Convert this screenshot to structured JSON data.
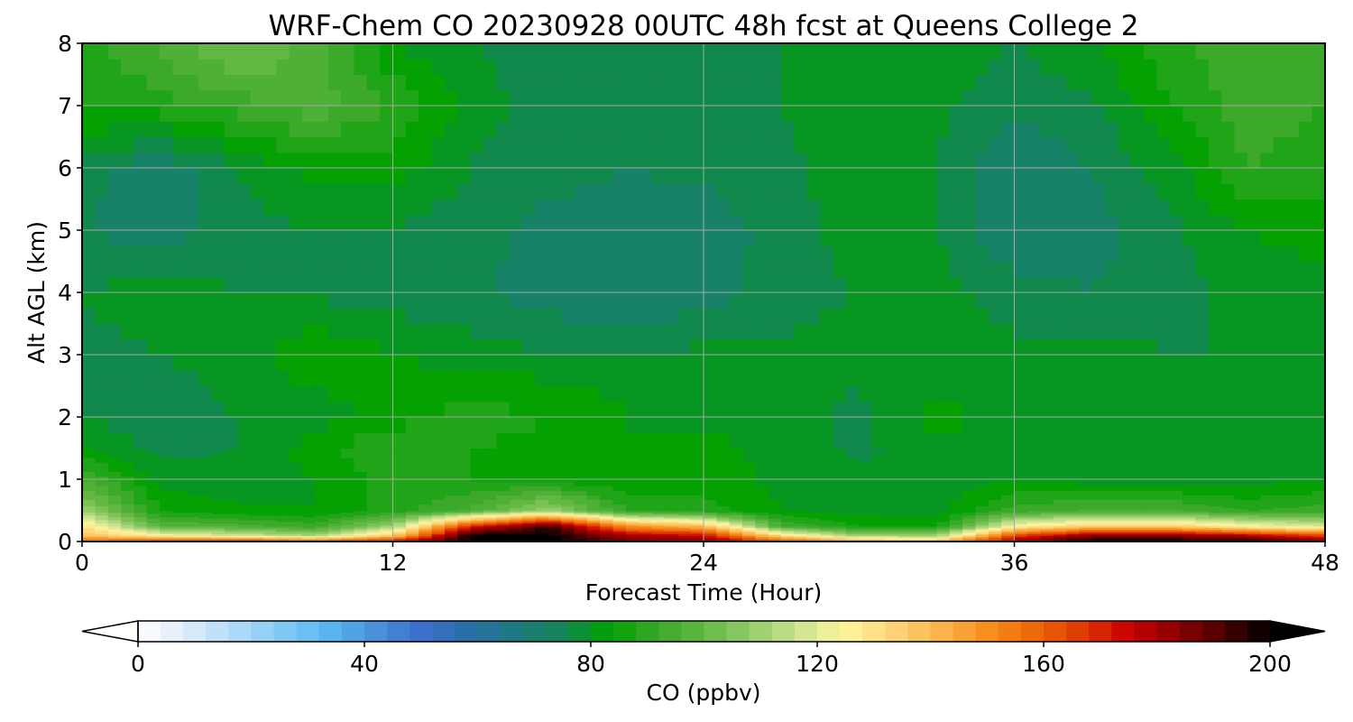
{
  "chart_data": {
    "type": "heatmap",
    "title": "WRF-Chem CO  20230928 00UTC 48h fcst at Queens College 2",
    "xlabel": "Forecast Time (Hour)",
    "ylabel": "Alt AGL (km)",
    "xlim": [
      0,
      48
    ],
    "ylim": [
      0,
      8
    ],
    "x_ticks": [
      "0",
      "12",
      "24",
      "36",
      "48"
    ],
    "y_ticks": [
      "0",
      "1",
      "2",
      "3",
      "4",
      "5",
      "6",
      "7",
      "8"
    ],
    "grid": true,
    "x": [
      0,
      3,
      6,
      9,
      12,
      15,
      18,
      21,
      24,
      27,
      30,
      33,
      36,
      39,
      42,
      45,
      48
    ],
    "y": [
      0,
      0.1,
      0.25,
      0.5,
      1,
      1.5,
      2,
      2.5,
      3,
      4,
      5,
      6,
      7,
      8
    ],
    "z": [
      [
        160,
        175,
        180,
        170,
        180,
        200,
        200,
        190,
        185,
        170,
        150,
        145,
        185,
        200,
        200,
        200,
        190
      ],
      [
        140,
        125,
        118,
        110,
        135,
        200,
        200,
        180,
        175,
        130,
        110,
        108,
        165,
        185,
        185,
        178,
        165
      ],
      [
        130,
        98,
        96,
        92,
        110,
        170,
        195,
        150,
        140,
        95,
        86,
        85,
        125,
        135,
        135,
        125,
        118
      ],
      [
        110,
        86,
        83,
        82,
        88,
        95,
        110,
        90,
        88,
        82,
        80,
        80,
        92,
        95,
        95,
        90,
        92
      ],
      [
        95,
        80,
        79,
        82,
        88,
        86,
        85,
        82,
        84,
        81,
        79,
        80,
        82,
        80,
        80,
        80,
        82
      ],
      [
        82,
        77,
        78,
        84,
        90,
        86,
        84,
        82,
        83,
        81,
        77,
        80,
        82,
        80,
        80,
        79,
        80
      ],
      [
        78,
        75,
        78,
        80,
        84,
        88,
        86,
        82,
        81,
        80,
        77,
        84,
        80,
        80,
        79,
        79,
        82
      ],
      [
        77,
        76,
        79,
        82,
        84,
        84,
        83,
        81,
        81,
        80,
        78,
        81,
        80,
        79,
        78,
        78,
        80
      ],
      [
        77,
        78,
        80,
        86,
        82,
        80,
        78,
        78,
        79,
        79,
        80,
        80,
        79,
        79,
        78,
        78,
        80
      ],
      [
        78,
        80,
        78,
        77,
        76,
        75,
        72,
        70,
        72,
        76,
        78,
        80,
        76,
        74,
        77,
        79,
        80
      ],
      [
        74,
        72,
        76,
        78,
        78,
        75,
        73,
        72,
        71,
        76,
        80,
        78,
        70,
        72,
        77,
        82,
        84
      ],
      [
        76,
        70,
        78,
        84,
        84,
        78,
        75,
        74,
        75,
        77,
        80,
        78,
        70,
        74,
        80,
        90,
        88
      ],
      [
        86,
        88,
        92,
        96,
        90,
        80,
        76,
        76,
        77,
        78,
        80,
        79,
        75,
        77,
        86,
        92,
        90
      ],
      [
        88,
        95,
        104,
        96,
        82,
        78,
        76,
        76,
        77,
        78,
        79,
        80,
        78,
        82,
        88,
        94,
        92
      ]
    ],
    "colorbar": {
      "label": "CO  (ppbv)",
      "vmin": 0,
      "vmax": 200,
      "step": 4,
      "ticks": [
        "0",
        "40",
        "80",
        "120",
        "160",
        "200"
      ],
      "extend": "both",
      "colors": [
        "#ffffff",
        "#dcecfb",
        "#b4dcf7",
        "#85c9f4",
        "#5ab8f2",
        "#4a93db",
        "#3d6fcc",
        "#2a6fa8",
        "#1e7a82",
        "#138658",
        "#00a000",
        "#3aa82a",
        "#62b843",
        "#95cc6b",
        "#cce394",
        "#fff59c",
        "#fdd57a",
        "#fbb44e",
        "#f78f1d",
        "#ee6808",
        "#df3a00",
        "#c80000",
        "#8e0000",
        "#4d0000",
        "#000000"
      ]
    }
  }
}
